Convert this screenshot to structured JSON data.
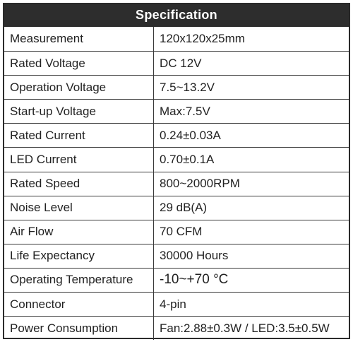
{
  "table": {
    "title": "Specification",
    "rows": [
      {
        "label": "Measurement",
        "value": "120x120x25mm"
      },
      {
        "label": "Rated Voltage",
        "value": "DC 12V"
      },
      {
        "label": "Operation Voltage",
        "value": "7.5~13.2V"
      },
      {
        "label": "Start-up Voltage",
        "value": "Max:7.5V"
      },
      {
        "label": "Rated Current",
        "value": "0.24±0.03A"
      },
      {
        "label": "LED Current",
        "value": "0.70±0.1A"
      },
      {
        "label": "Rated Speed",
        "value": "800~2000RPM"
      },
      {
        "label": "Noise Level",
        "value": "29 dB(A)"
      },
      {
        "label": "Air Flow",
        "value": "70 CFM"
      },
      {
        "label": "Life Expectancy",
        "value": "30000 Hours"
      },
      {
        "label": "Operating Temperature",
        "value": "-10~+70 °C"
      },
      {
        "label": "Connector",
        "value": "4-pin"
      },
      {
        "label": "Power Consumption",
        "value": "Fan:2.88±0.3W / LED:3.5±0.5W"
      }
    ]
  },
  "colors": {
    "header_background": "#2d2d2d",
    "header_text": "#ffffff",
    "border": "#3a3a3a",
    "text": "#222222"
  }
}
